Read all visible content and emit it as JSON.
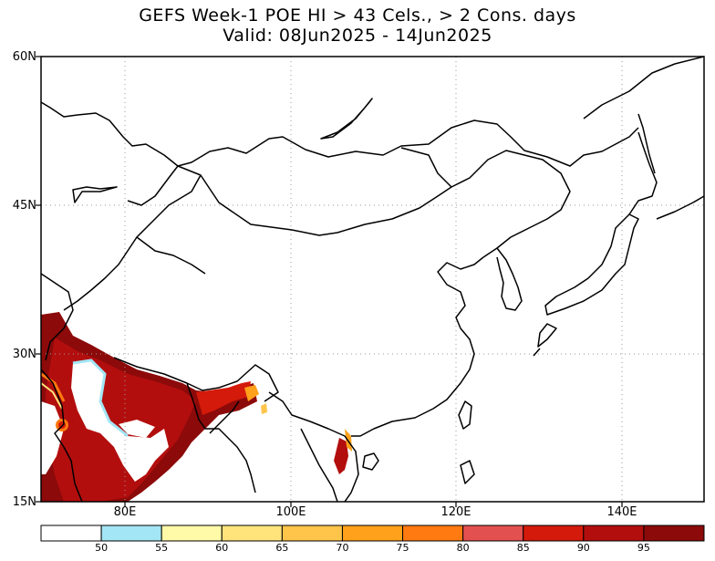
{
  "title_line1": "GEFS Week-1 POE HI > 43 Cels., > 2 Cons. days",
  "title_line2": "Valid: 08Jun2025 - 14Jun2025",
  "lat_labels": [
    "60N",
    "45N",
    "30N",
    "15N"
  ],
  "lon_labels": [
    "80E",
    "100E",
    "120E",
    "140E"
  ],
  "colorbar": {
    "colors": [
      "#ffffff",
      "#a3e6f5",
      "#fffaa8",
      "#ffe47c",
      "#ffc44a",
      "#ffa11a",
      "#ff7a10",
      "#e35050",
      "#d41a0a",
      "#b30e0e",
      "#8c0a0a"
    ],
    "labels": [
      "50",
      "55",
      "60",
      "65",
      "70",
      "75",
      "80",
      "85",
      "90",
      "95"
    ]
  }
}
